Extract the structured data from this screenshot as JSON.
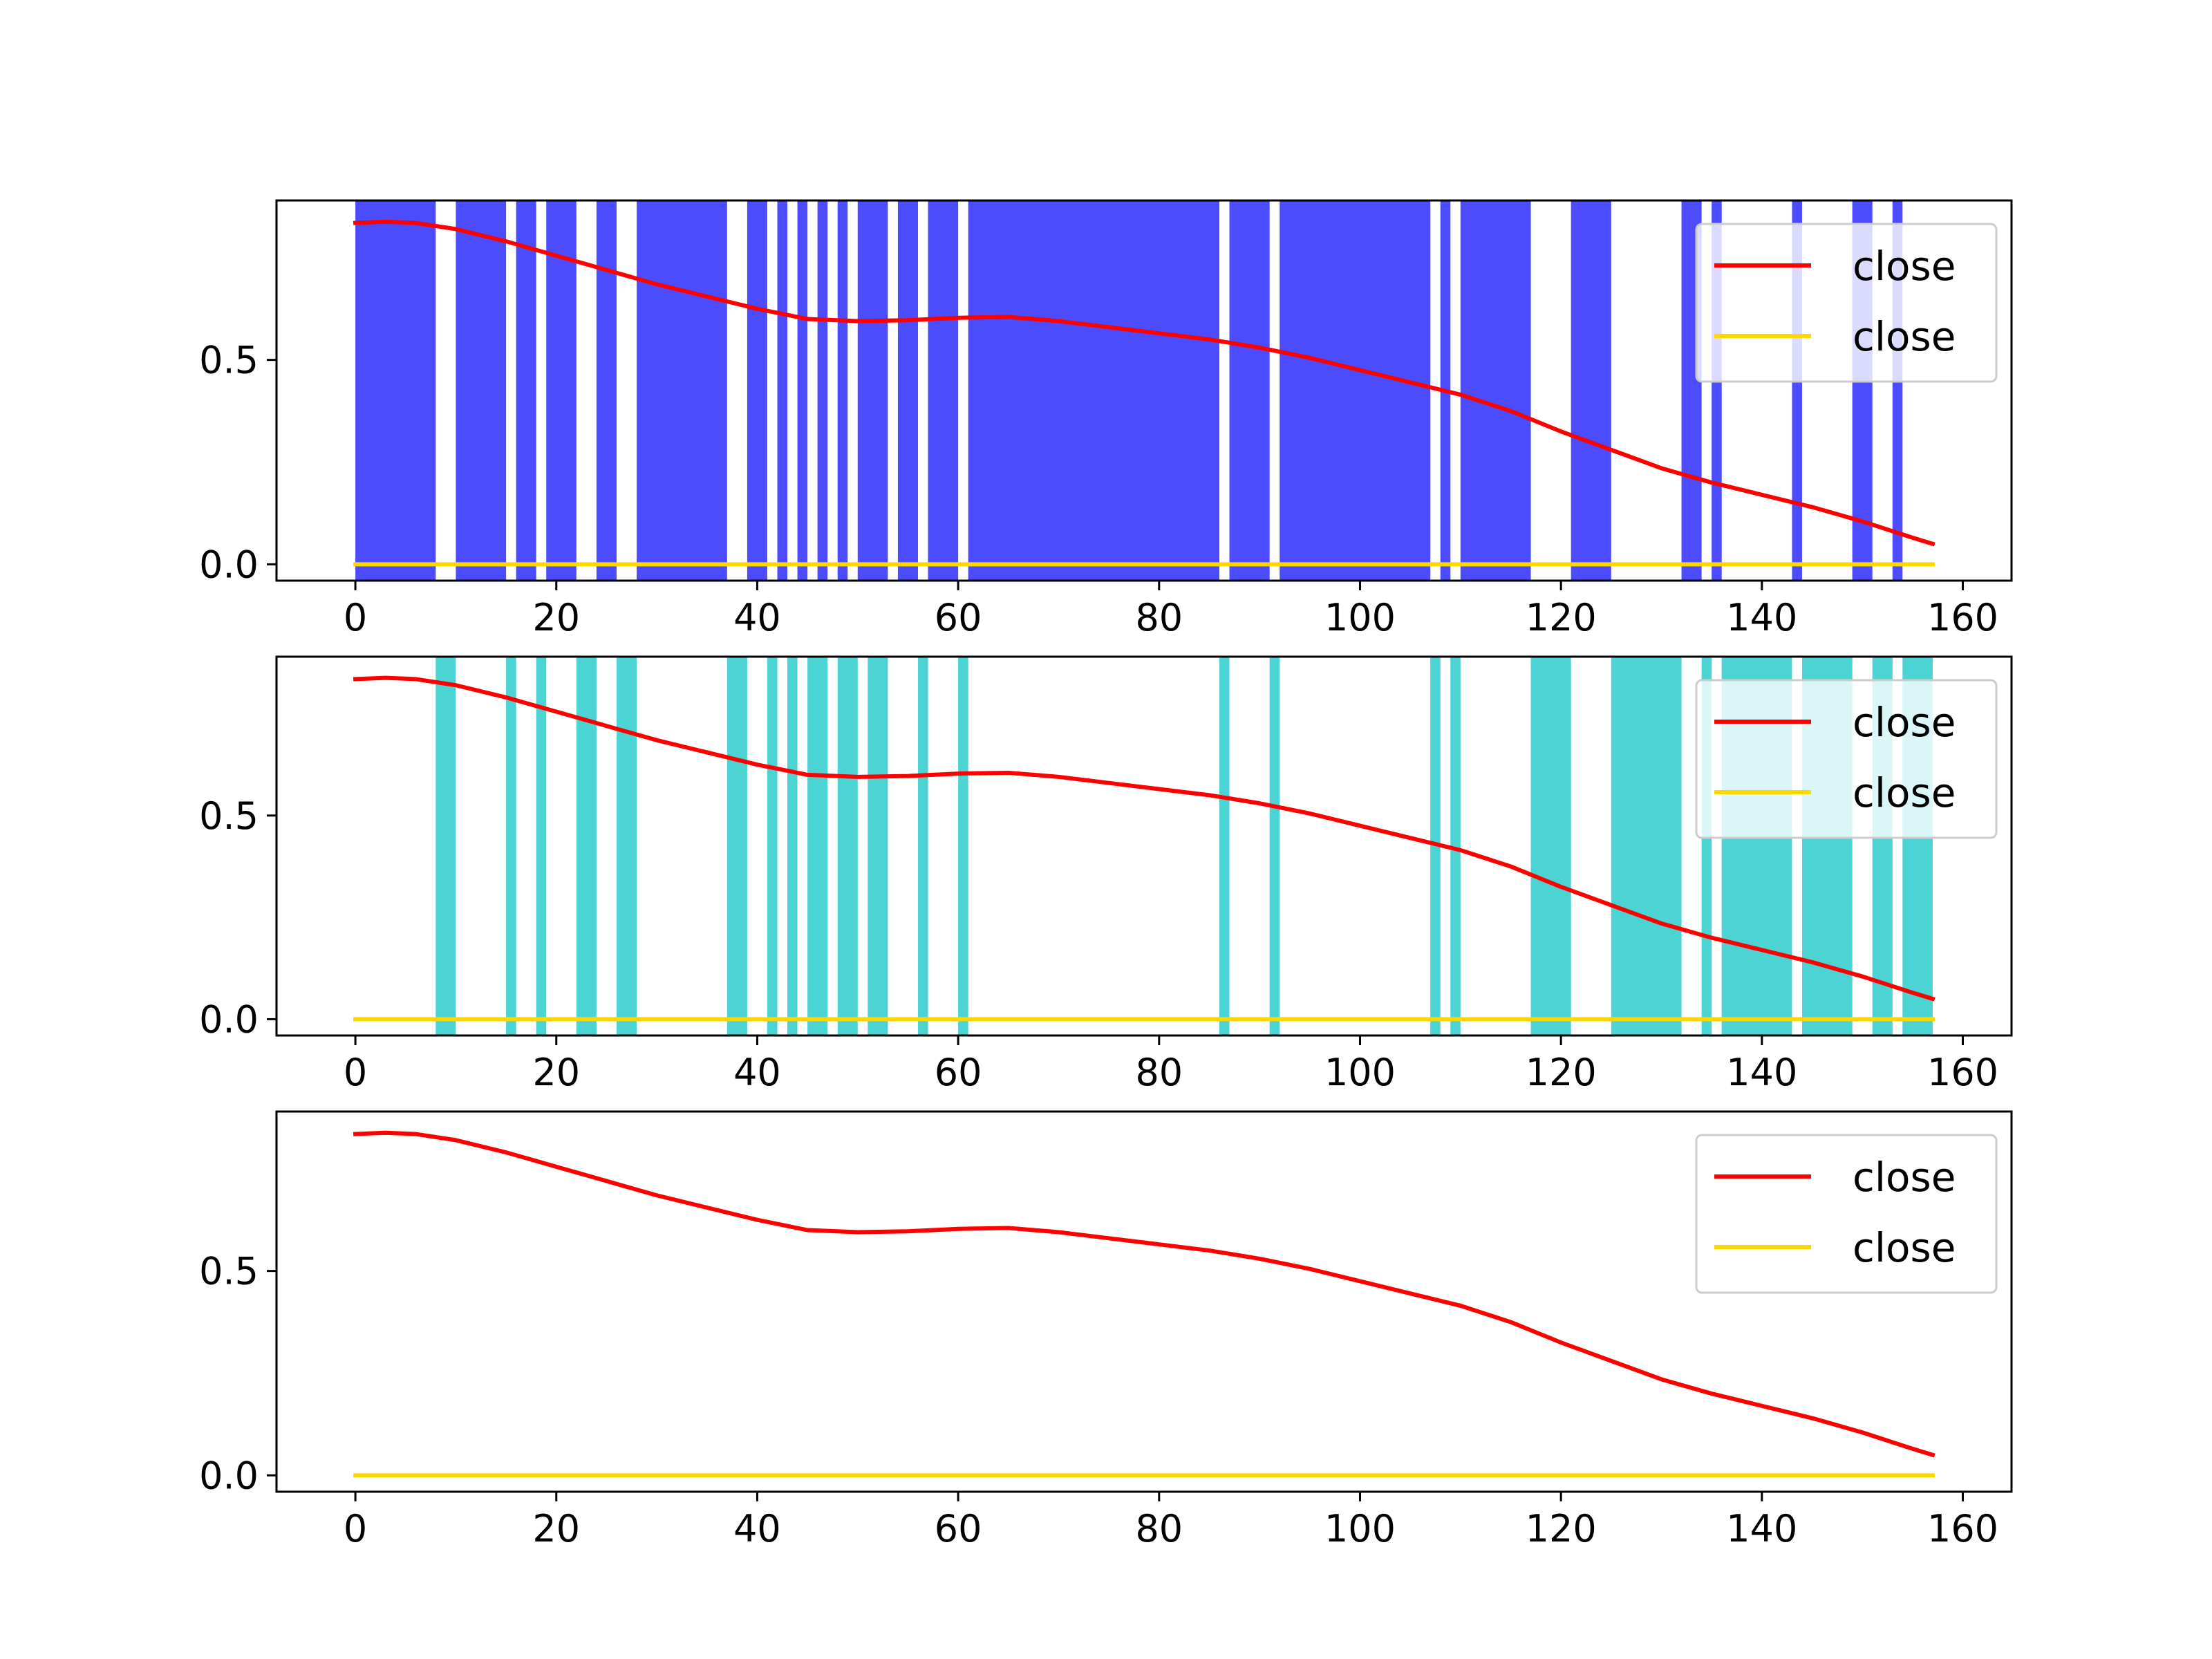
{
  "chart_data": [
    {
      "type": "line",
      "title": "",
      "xlabel": "",
      "ylabel": "",
      "xlim": [
        -7.85,
        164.85
      ],
      "ylim": [
        -0.04,
        0.89
      ],
      "xticks": [
        0,
        20,
        40,
        60,
        80,
        100,
        120,
        140,
        160
      ],
      "yticks": [
        0.0,
        0.5
      ],
      "legend": {
        "position": "top-right",
        "entries": [
          "close",
          "close"
        ]
      },
      "shaded_regions": {
        "color": "#0000ff",
        "opacity": 0.7,
        "spans": [
          [
            0,
            8
          ],
          [
            10,
            15
          ],
          [
            16,
            18
          ],
          [
            19,
            22
          ],
          [
            24,
            26
          ],
          [
            28,
            37
          ],
          [
            39,
            41
          ],
          [
            42,
            43
          ],
          [
            44,
            45
          ],
          [
            46,
            47
          ],
          [
            48,
            49
          ],
          [
            50,
            53
          ],
          [
            54,
            56
          ],
          [
            57,
            60
          ],
          [
            61,
            86
          ],
          [
            87,
            91
          ],
          [
            92,
            107
          ],
          [
            108,
            109
          ],
          [
            110,
            117
          ],
          [
            121,
            125
          ],
          [
            132,
            134
          ],
          [
            135,
            136
          ],
          [
            143,
            144
          ],
          [
            149,
            151
          ],
          [
            153,
            154
          ]
        ]
      },
      "series": [
        {
          "name": "close",
          "color": "#ff0000",
          "x": [
            0,
            3,
            6,
            10,
            15,
            20,
            25,
            30,
            35,
            40,
            45,
            50,
            55,
            60,
            65,
            70,
            75,
            80,
            85,
            90,
            95,
            100,
            105,
            110,
            115,
            120,
            125,
            130,
            135,
            140,
            145,
            150,
            155,
            157
          ],
          "values": [
            0.835,
            0.838,
            0.835,
            0.82,
            0.79,
            0.755,
            0.72,
            0.685,
            0.655,
            0.625,
            0.6,
            0.595,
            0.597,
            0.603,
            0.605,
            0.595,
            0.58,
            0.565,
            0.55,
            0.53,
            0.505,
            0.475,
            0.445,
            0.415,
            0.375,
            0.325,
            0.28,
            0.235,
            0.2,
            0.17,
            0.14,
            0.105,
            0.065,
            0.05
          ]
        },
        {
          "name": "close",
          "color": "#ffd700",
          "x": [
            0,
            157
          ],
          "values": [
            0,
            0
          ]
        }
      ]
    },
    {
      "type": "line",
      "title": "",
      "xlabel": "",
      "ylabel": "",
      "xlim": [
        -7.85,
        164.85
      ],
      "ylim": [
        -0.04,
        0.89
      ],
      "xticks": [
        0,
        20,
        40,
        60,
        80,
        100,
        120,
        140,
        160
      ],
      "yticks": [
        0.0,
        0.5
      ],
      "legend": {
        "position": "top-right",
        "entries": [
          "close",
          "close"
        ]
      },
      "shaded_regions": {
        "color": "#00c0c0",
        "opacity": 0.7,
        "spans": [
          [
            8,
            10
          ],
          [
            15,
            16
          ],
          [
            18,
            19
          ],
          [
            22,
            24
          ],
          [
            26,
            28
          ],
          [
            37,
            39
          ],
          [
            41,
            42
          ],
          [
            43,
            44
          ],
          [
            45,
            47
          ],
          [
            48,
            50
          ],
          [
            51,
            53
          ],
          [
            56,
            57
          ],
          [
            60,
            61
          ],
          [
            86,
            87
          ],
          [
            91,
            92
          ],
          [
            107,
            108
          ],
          [
            109,
            110
          ],
          [
            117,
            121
          ],
          [
            125,
            132
          ],
          [
            134,
            135
          ],
          [
            136,
            143
          ],
          [
            144,
            149
          ],
          [
            151,
            153
          ],
          [
            154,
            157
          ]
        ]
      },
      "series": [
        {
          "name": "close",
          "color": "#ff0000",
          "x": [
            0,
            3,
            6,
            10,
            15,
            20,
            25,
            30,
            35,
            40,
            45,
            50,
            55,
            60,
            65,
            70,
            75,
            80,
            85,
            90,
            95,
            100,
            105,
            110,
            115,
            120,
            125,
            130,
            135,
            140,
            145,
            150,
            155,
            157
          ],
          "values": [
            0.835,
            0.838,
            0.835,
            0.82,
            0.79,
            0.755,
            0.72,
            0.685,
            0.655,
            0.625,
            0.6,
            0.595,
            0.597,
            0.603,
            0.605,
            0.595,
            0.58,
            0.565,
            0.55,
            0.53,
            0.505,
            0.475,
            0.445,
            0.415,
            0.375,
            0.325,
            0.28,
            0.235,
            0.2,
            0.17,
            0.14,
            0.105,
            0.065,
            0.05
          ]
        },
        {
          "name": "close",
          "color": "#ffd700",
          "x": [
            0,
            157
          ],
          "values": [
            0,
            0
          ]
        }
      ]
    },
    {
      "type": "line",
      "title": "",
      "xlabel": "",
      "ylabel": "",
      "xlim": [
        -7.85,
        164.85
      ],
      "ylim": [
        -0.04,
        0.89
      ],
      "xticks": [
        0,
        20,
        40,
        60,
        80,
        100,
        120,
        140,
        160
      ],
      "yticks": [
        0.0,
        0.5
      ],
      "legend": {
        "position": "top-right",
        "entries": [
          "close",
          "close"
        ]
      },
      "series": [
        {
          "name": "close",
          "color": "#ff0000",
          "x": [
            0,
            3,
            6,
            10,
            15,
            20,
            25,
            30,
            35,
            40,
            45,
            50,
            55,
            60,
            65,
            70,
            75,
            80,
            85,
            90,
            95,
            100,
            105,
            110,
            115,
            120,
            125,
            130,
            135,
            140,
            145,
            150,
            155,
            157
          ],
          "values": [
            0.835,
            0.838,
            0.835,
            0.82,
            0.79,
            0.755,
            0.72,
            0.685,
            0.655,
            0.625,
            0.6,
            0.595,
            0.597,
            0.603,
            0.605,
            0.595,
            0.58,
            0.565,
            0.55,
            0.53,
            0.505,
            0.475,
            0.445,
            0.415,
            0.375,
            0.325,
            0.28,
            0.235,
            0.2,
            0.17,
            0.14,
            0.105,
            0.065,
            0.05
          ]
        },
        {
          "name": "close",
          "color": "#ffd700",
          "x": [
            0,
            157
          ],
          "values": [
            0,
            0
          ]
        }
      ]
    }
  ]
}
